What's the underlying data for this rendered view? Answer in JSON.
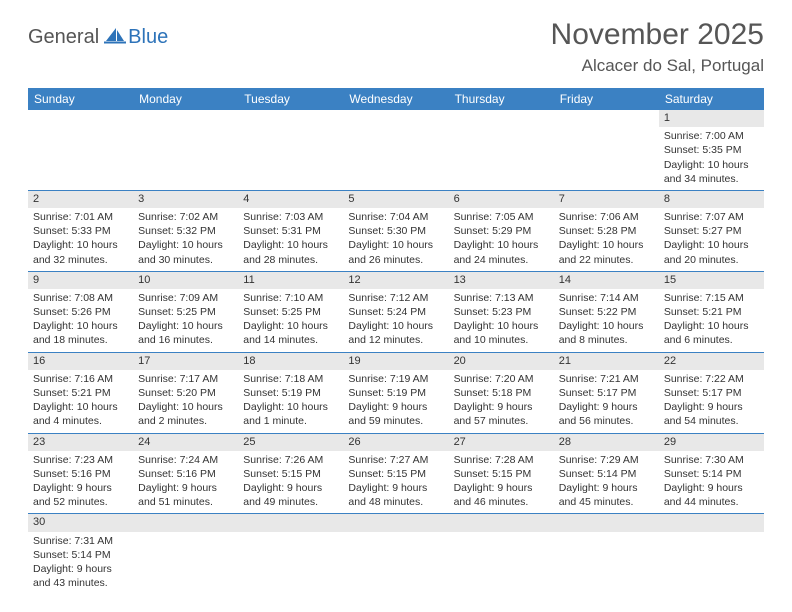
{
  "logo": {
    "general": "General",
    "blue": "Blue"
  },
  "title": "November 2025",
  "location": "Alcacer do Sal, Portugal",
  "colors": {
    "header_bg": "#3b81c3",
    "header_text": "#ffffff",
    "daynum_bg": "#e8e8e8",
    "cell_border": "#3b81c3",
    "logo_blue": "#2d73b9",
    "title_color": "#565656",
    "body_text": "#333333"
  },
  "day_headers": [
    "Sunday",
    "Monday",
    "Tuesday",
    "Wednesday",
    "Thursday",
    "Friday",
    "Saturday"
  ],
  "weeks": [
    [
      null,
      null,
      null,
      null,
      null,
      null,
      {
        "n": "1",
        "sr": "Sunrise: 7:00 AM",
        "ss": "Sunset: 5:35 PM",
        "dl": "Daylight: 10 hours and 34 minutes."
      }
    ],
    [
      {
        "n": "2",
        "sr": "Sunrise: 7:01 AM",
        "ss": "Sunset: 5:33 PM",
        "dl": "Daylight: 10 hours and 32 minutes."
      },
      {
        "n": "3",
        "sr": "Sunrise: 7:02 AM",
        "ss": "Sunset: 5:32 PM",
        "dl": "Daylight: 10 hours and 30 minutes."
      },
      {
        "n": "4",
        "sr": "Sunrise: 7:03 AM",
        "ss": "Sunset: 5:31 PM",
        "dl": "Daylight: 10 hours and 28 minutes."
      },
      {
        "n": "5",
        "sr": "Sunrise: 7:04 AM",
        "ss": "Sunset: 5:30 PM",
        "dl": "Daylight: 10 hours and 26 minutes."
      },
      {
        "n": "6",
        "sr": "Sunrise: 7:05 AM",
        "ss": "Sunset: 5:29 PM",
        "dl": "Daylight: 10 hours and 24 minutes."
      },
      {
        "n": "7",
        "sr": "Sunrise: 7:06 AM",
        "ss": "Sunset: 5:28 PM",
        "dl": "Daylight: 10 hours and 22 minutes."
      },
      {
        "n": "8",
        "sr": "Sunrise: 7:07 AM",
        "ss": "Sunset: 5:27 PM",
        "dl": "Daylight: 10 hours and 20 minutes."
      }
    ],
    [
      {
        "n": "9",
        "sr": "Sunrise: 7:08 AM",
        "ss": "Sunset: 5:26 PM",
        "dl": "Daylight: 10 hours and 18 minutes."
      },
      {
        "n": "10",
        "sr": "Sunrise: 7:09 AM",
        "ss": "Sunset: 5:25 PM",
        "dl": "Daylight: 10 hours and 16 minutes."
      },
      {
        "n": "11",
        "sr": "Sunrise: 7:10 AM",
        "ss": "Sunset: 5:25 PM",
        "dl": "Daylight: 10 hours and 14 minutes."
      },
      {
        "n": "12",
        "sr": "Sunrise: 7:12 AM",
        "ss": "Sunset: 5:24 PM",
        "dl": "Daylight: 10 hours and 12 minutes."
      },
      {
        "n": "13",
        "sr": "Sunrise: 7:13 AM",
        "ss": "Sunset: 5:23 PM",
        "dl": "Daylight: 10 hours and 10 minutes."
      },
      {
        "n": "14",
        "sr": "Sunrise: 7:14 AM",
        "ss": "Sunset: 5:22 PM",
        "dl": "Daylight: 10 hours and 8 minutes."
      },
      {
        "n": "15",
        "sr": "Sunrise: 7:15 AM",
        "ss": "Sunset: 5:21 PM",
        "dl": "Daylight: 10 hours and 6 minutes."
      }
    ],
    [
      {
        "n": "16",
        "sr": "Sunrise: 7:16 AM",
        "ss": "Sunset: 5:21 PM",
        "dl": "Daylight: 10 hours and 4 minutes."
      },
      {
        "n": "17",
        "sr": "Sunrise: 7:17 AM",
        "ss": "Sunset: 5:20 PM",
        "dl": "Daylight: 10 hours and 2 minutes."
      },
      {
        "n": "18",
        "sr": "Sunrise: 7:18 AM",
        "ss": "Sunset: 5:19 PM",
        "dl": "Daylight: 10 hours and 1 minute."
      },
      {
        "n": "19",
        "sr": "Sunrise: 7:19 AM",
        "ss": "Sunset: 5:19 PM",
        "dl": "Daylight: 9 hours and 59 minutes."
      },
      {
        "n": "20",
        "sr": "Sunrise: 7:20 AM",
        "ss": "Sunset: 5:18 PM",
        "dl": "Daylight: 9 hours and 57 minutes."
      },
      {
        "n": "21",
        "sr": "Sunrise: 7:21 AM",
        "ss": "Sunset: 5:17 PM",
        "dl": "Daylight: 9 hours and 56 minutes."
      },
      {
        "n": "22",
        "sr": "Sunrise: 7:22 AM",
        "ss": "Sunset: 5:17 PM",
        "dl": "Daylight: 9 hours and 54 minutes."
      }
    ],
    [
      {
        "n": "23",
        "sr": "Sunrise: 7:23 AM",
        "ss": "Sunset: 5:16 PM",
        "dl": "Daylight: 9 hours and 52 minutes."
      },
      {
        "n": "24",
        "sr": "Sunrise: 7:24 AM",
        "ss": "Sunset: 5:16 PM",
        "dl": "Daylight: 9 hours and 51 minutes."
      },
      {
        "n": "25",
        "sr": "Sunrise: 7:26 AM",
        "ss": "Sunset: 5:15 PM",
        "dl": "Daylight: 9 hours and 49 minutes."
      },
      {
        "n": "26",
        "sr": "Sunrise: 7:27 AM",
        "ss": "Sunset: 5:15 PM",
        "dl": "Daylight: 9 hours and 48 minutes."
      },
      {
        "n": "27",
        "sr": "Sunrise: 7:28 AM",
        "ss": "Sunset: 5:15 PM",
        "dl": "Daylight: 9 hours and 46 minutes."
      },
      {
        "n": "28",
        "sr": "Sunrise: 7:29 AM",
        "ss": "Sunset: 5:14 PM",
        "dl": "Daylight: 9 hours and 45 minutes."
      },
      {
        "n": "29",
        "sr": "Sunrise: 7:30 AM",
        "ss": "Sunset: 5:14 PM",
        "dl": "Daylight: 9 hours and 44 minutes."
      }
    ],
    [
      {
        "n": "30",
        "sr": "Sunrise: 7:31 AM",
        "ss": "Sunset: 5:14 PM",
        "dl": "Daylight: 9 hours and 43 minutes."
      },
      null,
      null,
      null,
      null,
      null,
      null
    ]
  ]
}
